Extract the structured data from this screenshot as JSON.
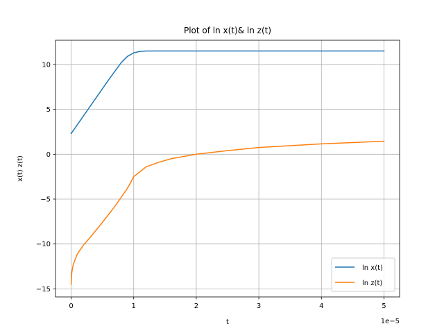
{
  "chart_data": {
    "type": "line",
    "title": "Plot of ln x(t)& ln z(t)",
    "xlabel": "t",
    "ylabel": "x(t) z(t)",
    "x_offset_label": "1e−5",
    "xlim": [
      -0.25,
      5.25
    ],
    "ylim": [
      -15.9,
      12.7
    ],
    "x_ticks": [
      0,
      1,
      2,
      3,
      4,
      5
    ],
    "x_tick_labels": [
      "0",
      "1",
      "2",
      "3",
      "4",
      "5"
    ],
    "y_ticks": [
      -15,
      -10,
      -5,
      0,
      5,
      10
    ],
    "y_tick_labels": [
      "−15",
      "−10",
      "−5",
      "0",
      "5",
      "10"
    ],
    "grid": true,
    "legend_position": "lower-right",
    "series": [
      {
        "name": "ln x(t)",
        "color": "#1f77b4",
        "x": [
          0,
          0.2,
          0.4,
          0.6,
          0.8,
          0.9,
          1.0,
          1.1,
          1.2,
          1.4,
          2,
          3,
          4,
          5
        ],
        "y": [
          2.3,
          4.3,
          6.3,
          8.3,
          10.2,
          10.9,
          11.3,
          11.45,
          11.5,
          11.5,
          11.5,
          11.5,
          11.5,
          11.5
        ]
      },
      {
        "name": "ln z(t)",
        "color": "#ff7f0e",
        "x": [
          0,
          0.01,
          0.03,
          0.06,
          0.1,
          0.2,
          0.3,
          0.5,
          0.7,
          0.9,
          1.0,
          1.2,
          1.4,
          1.6,
          2.0,
          2.5,
          3.0,
          3.5,
          4.0,
          4.5,
          5.0
        ],
        "y": [
          -14.5,
          -13.2,
          -12.4,
          -11.8,
          -11.1,
          -10.1,
          -9.3,
          -7.6,
          -5.8,
          -3.8,
          -2.5,
          -1.4,
          -0.9,
          -0.5,
          0.0,
          0.4,
          0.75,
          0.95,
          1.15,
          1.3,
          1.45
        ]
      }
    ]
  }
}
